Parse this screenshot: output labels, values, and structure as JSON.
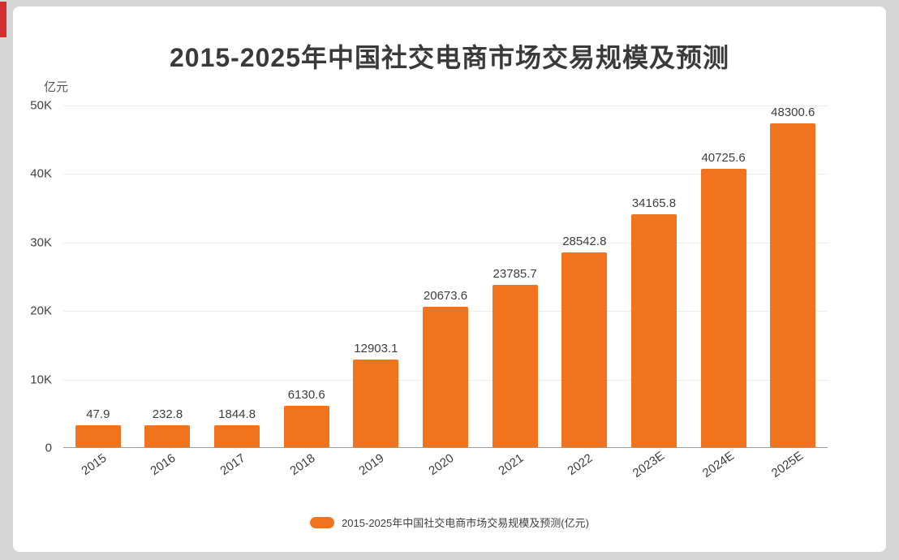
{
  "page": {
    "background_color": "#d6d6d6",
    "card_color": "#ffffff",
    "accent_red": "#d32f2f"
  },
  "chart_data": {
    "type": "bar",
    "title": "2015-2025年中国社交电商市场交易规模及预测",
    "ylabel": "亿元",
    "categories": [
      "2015",
      "2016",
      "2017",
      "2018",
      "2019",
      "2020",
      "2021",
      "2022",
      "2023E",
      "2024E",
      "2025E"
    ],
    "values": [
      47.9,
      232.8,
      1844.8,
      6130.6,
      12903.1,
      20673.6,
      23785.7,
      28542.8,
      34165.8,
      40725.6,
      48300.6
    ],
    "value_labels": [
      "47.9",
      "232.8",
      "1844.8",
      "6130.6",
      "12903.1",
      "20673.6",
      "23785.7",
      "28542.8",
      "34165.8",
      "40725.6",
      "48300.6"
    ],
    "ylim": [
      0,
      50000
    ],
    "ytick_values": [
      0,
      10000,
      20000,
      30000,
      40000,
      50000
    ],
    "ytick_labels": [
      "0",
      "10K",
      "20K",
      "30K",
      "40K",
      "50K"
    ],
    "grid": true,
    "bar_color": "#f2731d",
    "label_color": "#3e3e3e",
    "legend": {
      "position": "bottom",
      "label": "2015-2025年中国社交电商市场交易规模及预测(亿元)"
    }
  }
}
